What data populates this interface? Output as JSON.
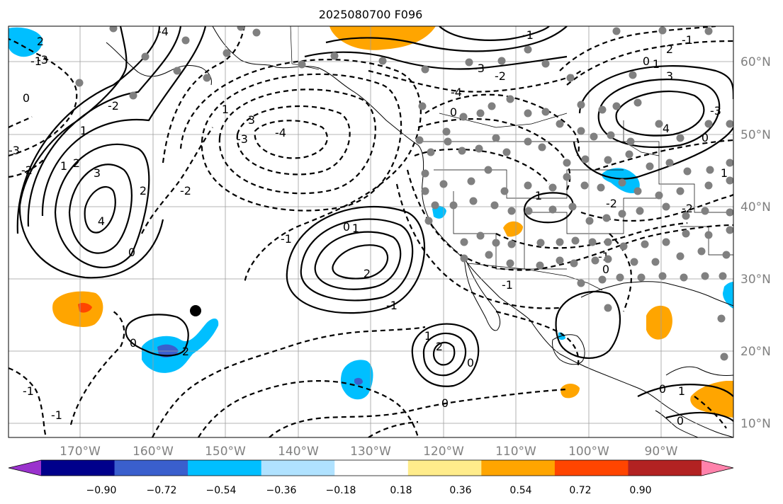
{
  "title": "2025080700 F096",
  "lat_labels": [
    "60°N",
    "50°N",
    "40°N",
    "30°N",
    "20°N",
    "10°N"
  ],
  "lon_labels": [
    "170°W",
    "160°W",
    "150°W",
    "140°W",
    "130°W",
    "120°W",
    "110°W",
    "100°W",
    "90°W"
  ],
  "colorbar": {
    "tick_labels": [
      "−0.90",
      "−0.72",
      "−0.54",
      "−0.36",
      "−0.18",
      "0.18",
      "0.36",
      "0.54",
      "0.72",
      "0.90"
    ],
    "colors": [
      "#9a32cd",
      "#00008b",
      "#3a5fcd",
      "#00bfff",
      "#b0e2ff",
      "#ffffff",
      "#ffec8b",
      "#ffa500",
      "#ff4500",
      "#b22222",
      "#ff82ab"
    ]
  },
  "contour_labels": [
    "4",
    "3",
    "2",
    "1",
    "0",
    "-1",
    "-2",
    "-3",
    "-4",
    "2",
    "1",
    "0",
    "-1",
    "-2",
    "-3",
    "-4",
    "2",
    "1",
    "0",
    "-1",
    "-2",
    "-1",
    "0",
    "2",
    "1",
    "0",
    "-1",
    "-2",
    "-3",
    "-4",
    "4",
    "3",
    "2",
    "1",
    "0",
    "-1",
    "-2",
    "-3",
    "1",
    "0",
    "-1",
    "-2",
    "0",
    "-1",
    "2",
    "1",
    "0",
    "1",
    "0",
    "0",
    "1",
    "-1",
    "0",
    "3",
    "2",
    "-3"
  ],
  "marker_color": "#808080",
  "storm_marker_color": "#000000"
}
